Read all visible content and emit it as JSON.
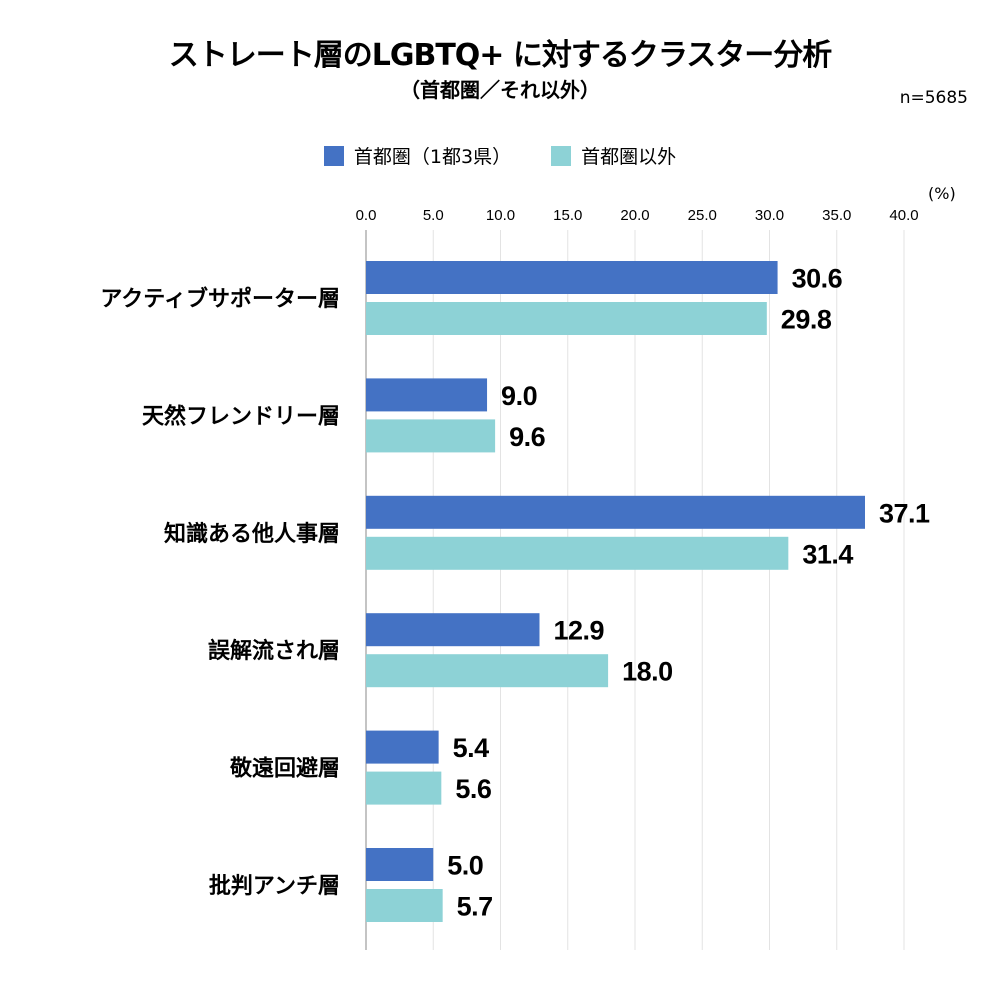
{
  "chart_data": {
    "type": "bar",
    "orientation": "horizontal",
    "title": "ストレート層のLGBTQ+ に対するクラスター分析",
    "subtitle": "（首都圏／それ以外）",
    "sample_size": "n=5685",
    "unit": "(%)",
    "categories": [
      "アクティブサポーター層",
      "天然フレンドリー層",
      "知識ある他人事層",
      "誤解流され層",
      "敬遠回避層",
      "批判アンチ層"
    ],
    "series": [
      {
        "name": "首都圏（1都3県）",
        "color": "#4472C4",
        "values": [
          30.6,
          9.0,
          37.1,
          12.9,
          5.4,
          5.0
        ]
      },
      {
        "name": "首都圏以外",
        "color": "#8DD2D6",
        "values": [
          29.8,
          9.6,
          31.4,
          18.0,
          5.6,
          5.7
        ]
      }
    ],
    "xlim": [
      0,
      40
    ],
    "xticks": [
      "0.0",
      "5.0",
      "10.0",
      "15.0",
      "20.0",
      "25.0",
      "30.0",
      "35.0",
      "40.0"
    ],
    "grid": true,
    "legend_position": "top"
  }
}
